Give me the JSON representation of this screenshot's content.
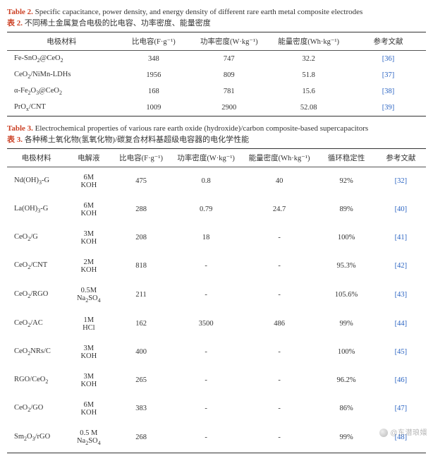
{
  "table2": {
    "caption_en_label": "Table 2.",
    "caption_en_text": "Specific capacitance, power density, and energy density of different rare earth metal composite electrodes",
    "caption_cn_label": "表 2.",
    "caption_cn_text": "不同稀土金属复合电极的比电容、功率密度、能量密度",
    "columns": [
      "电极材料",
      "比电容(F·g⁻¹)",
      "功率密度(W·kg⁻¹)",
      "能量密度(Wh·kg⁻¹)",
      "参考文献"
    ],
    "col_widths": [
      "26%",
      "18%",
      "18%",
      "20%",
      "18%"
    ],
    "header_fontsize": 10.5,
    "cell_fontsize": 10.5,
    "border_color": "#333333",
    "ref_color": "#2a63c2",
    "rows": [
      {
        "material_html": "Fe-SnO<span class='sub'>2</span>@CeO<span class='sub'>2</span>",
        "cap": "348",
        "pd": "747",
        "ed": "32.2",
        "ref": "[36]"
      },
      {
        "material_html": "CeO<span class='sub'>2</span>/NiMn-LDHs",
        "cap": "1956",
        "pd": "809",
        "ed": "51.8",
        "ref": "[37]"
      },
      {
        "material_html": "α-Fe<span class='sub'>2</span>O<span class='sub'>3</span>@CeO<span class='sub'>2</span>",
        "cap": "168",
        "pd": "781",
        "ed": "15.6",
        "ref": "[38]"
      },
      {
        "material_html": "PrO<span class='sub'>x</span>/CNT",
        "cap": "1009",
        "pd": "2900",
        "ed": "52.08",
        "ref": "[39]"
      }
    ]
  },
  "table3": {
    "caption_en_label": "Table 3.",
    "caption_en_text": "Electrochemical properties of various rare earth oxide (hydroxide)/carbon composite-based supercapacitors",
    "caption_cn_label": "表 3.",
    "caption_cn_text": "各种稀土氧化物(氢氧化物)/碳复合材料基超级电容器的电化学性能",
    "columns": [
      "电极材料",
      "电解液",
      "比电容(F·g⁻¹)",
      "功率密度(W·kg⁻¹)",
      "能量密度(Wh·kg⁻¹)",
      "循环稳定性",
      "参考文献"
    ],
    "col_widths": [
      "14%",
      "11%",
      "14%",
      "17%",
      "18%",
      "14%",
      "12%"
    ],
    "header_fontsize": 10.5,
    "cell_fontsize": 10.5,
    "border_color": "#333333",
    "ref_color": "#2a63c2",
    "rows": [
      {
        "material_html": "Nd(OH)<span class='sub'>3</span>-G",
        "elec_html": "6M<br>KOH",
        "cap": "475",
        "pd": "0.8",
        "ed": "40",
        "stab": "92%",
        "ref": "[32]"
      },
      {
        "material_html": "La(OH)<span class='sub'>3</span>-G",
        "elec_html": "6M<br>KOH",
        "cap": "288",
        "pd": "0.79",
        "ed": "24.7",
        "stab": "89%",
        "ref": "[40]"
      },
      {
        "material_html": "CeO<span class='sub'>2</span>/G",
        "elec_html": "3M<br>KOH",
        "cap": "208",
        "pd": "18",
        "ed": "-",
        "stab": "100%",
        "ref": "[41]"
      },
      {
        "material_html": "CeO<span class='sub'>2</span>/CNT",
        "elec_html": "2M<br>KOH",
        "cap": "818",
        "pd": "-",
        "ed": "-",
        "stab": "95.3%",
        "ref": "[42]"
      },
      {
        "material_html": "CeO<span class='sub'>2</span>/RGO",
        "elec_html": "0.5M<br>Na<span class='sub'>2</span>SO<span class='sub'>4</span>",
        "cap": "211",
        "pd": "-",
        "ed": "-",
        "stab": "105.6%",
        "ref": "[43]"
      },
      {
        "material_html": "CeO<span class='sub'>2</span>/AC",
        "elec_html": "1M<br>HCl",
        "cap": "162",
        "pd": "3500",
        "ed": "486",
        "stab": "99%",
        "ref": "[44]"
      },
      {
        "material_html": "CeO<span class='sub'>2</span>NRs/C",
        "elec_html": "3M<br>KOH",
        "cap": "400",
        "pd": "-",
        "ed": "-",
        "stab": "100%",
        "ref": "[45]"
      },
      {
        "material_html": "RGO/CeO<span class='sub'>2</span>",
        "elec_html": "3M<br>KOH",
        "cap": "265",
        "pd": "-",
        "ed": "-",
        "stab": "96.2%",
        "ref": "[46]"
      },
      {
        "material_html": "CeO<span class='sub'>2</span>/GO",
        "elec_html": "6M<br>KOH",
        "cap": "383",
        "pd": "-",
        "ed": "-",
        "stab": "86%",
        "ref": "[47]"
      },
      {
        "material_html": "Sm<span class='sub'>2</span>O<span class='sub'>3</span>/rGO",
        "elec_html": "0.5 M<br>Na<span class='sub'>2</span>SO<span class='sub'>4</span>",
        "cap": "268",
        "pd": "-",
        "ed": "-",
        "stab": "99%",
        "ref": "[48]"
      }
    ]
  },
  "watermark": "@东潜琅嬛"
}
